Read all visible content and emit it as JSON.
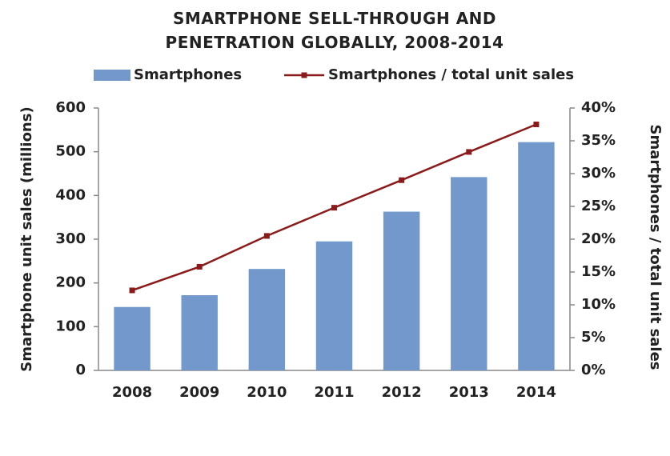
{
  "chart_data": {
    "type": "bar-line",
    "title": "SMARTPHONE SELL-THROUGH AND PENETRATION GLOBALLY, 2008-2014",
    "y_label": "Smartphone unit sales (millions)",
    "y2_label": "Smartphones / total unit sales",
    "categories": [
      "2008",
      "2009",
      "2010",
      "2011",
      "2012",
      "2013",
      "2014"
    ],
    "series": [
      {
        "name": "Smartphones",
        "type": "bar",
        "color": "#7399cc",
        "values": [
          145,
          172,
          232,
          295,
          363,
          442,
          522
        ]
      },
      {
        "name": "Smartphones / total unit sales",
        "type": "line",
        "axis": "y2",
        "color": "#8b1a1a",
        "values": [
          12.2,
          15.8,
          20.5,
          24.8,
          29.0,
          33.3,
          37.5
        ]
      }
    ],
    "ylim": [
      0,
      600
    ],
    "yticks": [
      0,
      100,
      200,
      300,
      400,
      500,
      600
    ],
    "y2lim": [
      0,
      40
    ],
    "y2ticks": [
      {
        "value": 0,
        "label": "0%"
      },
      {
        "value": 5,
        "label": "5%"
      },
      {
        "value": 10,
        "label": "10%"
      },
      {
        "value": 15,
        "label": "15%"
      },
      {
        "value": 20,
        "label": "20%"
      },
      {
        "value": 25,
        "label": "25%"
      },
      {
        "value": 30,
        "label": "30%"
      },
      {
        "value": 35,
        "label": "35%"
      },
      {
        "value": 40,
        "label": "40%"
      }
    ],
    "grid": false,
    "legend": "top"
  }
}
